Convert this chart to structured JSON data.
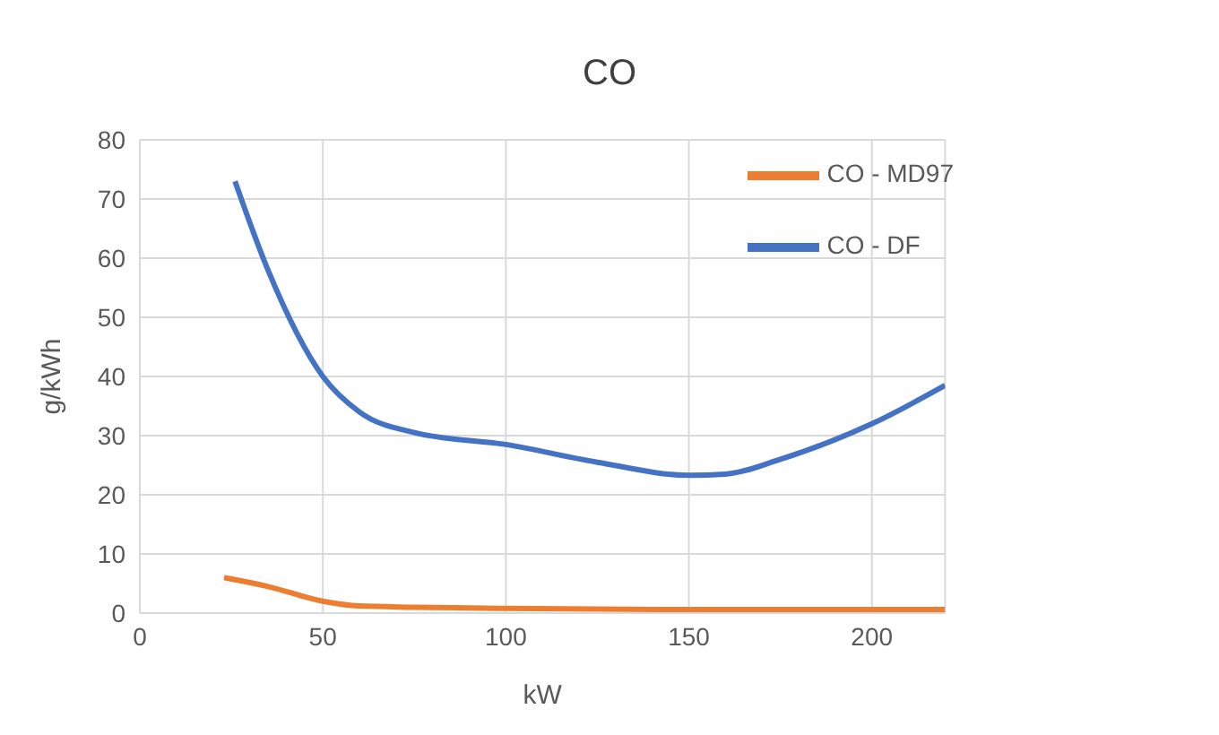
{
  "chart_data": {
    "type": "line",
    "title": "CO",
    "xlabel": "kW",
    "ylabel": "g/kWh",
    "xlim": [
      0,
      220
    ],
    "xticks": [
      0,
      50,
      100,
      150,
      200
    ],
    "ylim": [
      0,
      80
    ],
    "yticks": [
      0,
      10,
      20,
      30,
      40,
      50,
      60,
      70,
      80
    ],
    "grid": true,
    "legend": "top right",
    "marker": "none",
    "line_style": "solid",
    "series": [
      {
        "name": "CO - DF",
        "color": "#4472c4",
        "x": [
          26,
          35,
          50,
          60,
          75,
          100,
          125,
          150,
          160,
          175,
          200,
          220
        ],
        "values": [
          73,
          58,
          40,
          34,
          30.5,
          28.5,
          25.5,
          23.3,
          23.5,
          26,
          32,
          38.5
        ]
      },
      {
        "name": "CO  - MD97",
        "color": "#ed7d31",
        "x": [
          23,
          35,
          50,
          60,
          75,
          100,
          150,
          220
        ],
        "values": [
          6,
          4.5,
          2,
          1.2,
          1,
          0.8,
          0.6,
          0.6
        ]
      }
    ]
  }
}
